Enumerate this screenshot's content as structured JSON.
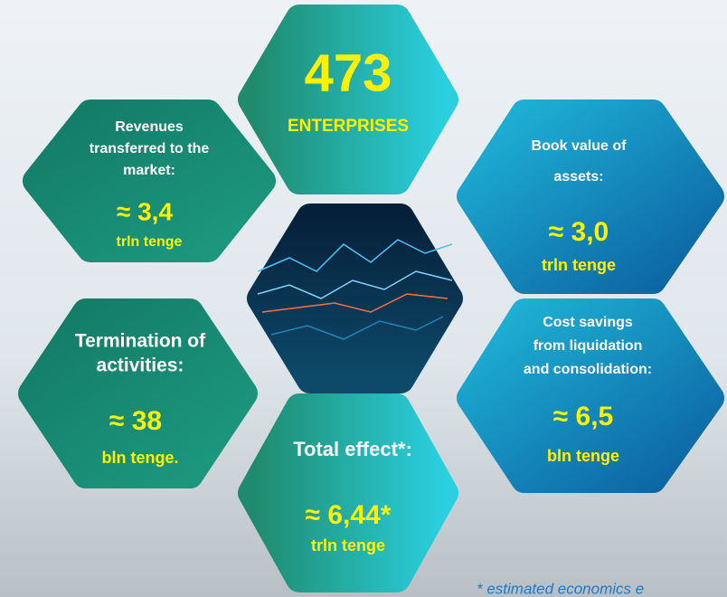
{
  "nodes": [
    {
      "value": "473",
      "label": "ENTERPRISES"
    },
    {
      "title": [
        "Revenues",
        "transferred to the",
        "market:"
      ],
      "value": "≈ 3,4",
      "unit": "trln tenge"
    },
    {
      "title": [
        "Book value of",
        "assets:"
      ],
      "value": "≈ 3,0",
      "unit": "trln tenge"
    },
    {
      "title": [
        "Termination of",
        "activities:"
      ],
      "value": "≈ 38",
      "unit": "bln tenge."
    },
    {
      "title": [
        "Cost savings",
        "from liquidation",
        "and consolidation:"
      ],
      "value": "≈ 6,5",
      "unit": "bln tenge"
    },
    {
      "title": [
        "Total effect*:"
      ],
      "value": "≈ 6,44*",
      "unit": "trln tenge"
    }
  ],
  "footnote": "* estimated economics e"
}
